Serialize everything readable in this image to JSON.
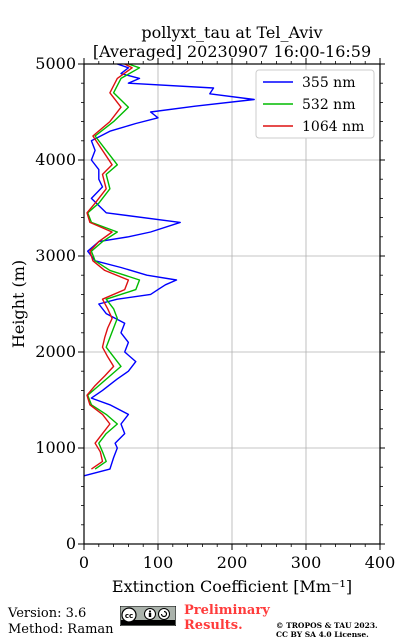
{
  "chart_data": {
    "type": "line",
    "title": "pollyxt_tau at Tel_Aviv",
    "subtitle": "[Averaged] 20230907 16:00-16:59",
    "xlabel": "Extinction Coefficient [Mm⁻¹]",
    "ylabel": "Height (m)",
    "xlim": [
      0,
      400
    ],
    "ylim": [
      0,
      5000
    ],
    "xticks": [
      "0",
      "100",
      "200",
      "300",
      "400"
    ],
    "yticks": [
      "0",
      "1000",
      "2000",
      "3000",
      "4000",
      "5000"
    ],
    "grid": true,
    "legend_position": "top-right",
    "orientation": "horizontal-profile",
    "series": [
      {
        "name": "355 nm",
        "color": "#0000ff",
        "points": [
          [
            0,
            710
          ],
          [
            35,
            780
          ],
          [
            40,
            900
          ],
          [
            45,
            1000
          ],
          [
            42,
            1050
          ],
          [
            55,
            1150
          ],
          [
            50,
            1250
          ],
          [
            60,
            1350
          ],
          [
            35,
            1450
          ],
          [
            10,
            1520
          ],
          [
            25,
            1600
          ],
          [
            45,
            1720
          ],
          [
            60,
            1800
          ],
          [
            70,
            1900
          ],
          [
            55,
            2000
          ],
          [
            60,
            2100
          ],
          [
            50,
            2200
          ],
          [
            55,
            2300
          ],
          [
            30,
            2400
          ],
          [
            20,
            2500
          ],
          [
            45,
            2550
          ],
          [
            90,
            2600
          ],
          [
            100,
            2650
          ],
          [
            110,
            2700
          ],
          [
            125,
            2750
          ],
          [
            85,
            2800
          ],
          [
            50,
            2880
          ],
          [
            15,
            2950
          ],
          [
            5,
            3050
          ],
          [
            20,
            3150
          ],
          [
            60,
            3200
          ],
          [
            90,
            3250
          ],
          [
            130,
            3350
          ],
          [
            30,
            3450
          ],
          [
            10,
            3600
          ],
          [
            25,
            3720
          ],
          [
            20,
            3800
          ],
          [
            20,
            3900
          ],
          [
            10,
            4000
          ],
          [
            15,
            4100
          ],
          [
            10,
            4200
          ],
          [
            35,
            4300
          ],
          [
            70,
            4380
          ],
          [
            100,
            4440
          ],
          [
            90,
            4500
          ],
          [
            150,
            4560
          ],
          [
            230,
            4630
          ],
          [
            170,
            4690
          ],
          [
            175,
            4750
          ],
          [
            60,
            4800
          ],
          [
            75,
            4850
          ],
          [
            50,
            4900
          ],
          [
            60,
            4960
          ],
          [
            45,
            5000
          ]
        ]
      },
      {
        "name": "532 nm",
        "color": "#00bb00",
        "points": [
          [
            15,
            780
          ],
          [
            30,
            860
          ],
          [
            25,
            960
          ],
          [
            20,
            1050
          ],
          [
            30,
            1150
          ],
          [
            45,
            1250
          ],
          [
            30,
            1350
          ],
          [
            10,
            1450
          ],
          [
            5,
            1550
          ],
          [
            20,
            1650
          ],
          [
            35,
            1750
          ],
          [
            50,
            1850
          ],
          [
            40,
            1950
          ],
          [
            30,
            2050
          ],
          [
            35,
            2150
          ],
          [
            40,
            2250
          ],
          [
            45,
            2350
          ],
          [
            40,
            2450
          ],
          [
            30,
            2550
          ],
          [
            70,
            2650
          ],
          [
            75,
            2750
          ],
          [
            35,
            2850
          ],
          [
            15,
            2950
          ],
          [
            10,
            3050
          ],
          [
            25,
            3150
          ],
          [
            45,
            3250
          ],
          [
            10,
            3350
          ],
          [
            5,
            3450
          ],
          [
            20,
            3550
          ],
          [
            35,
            3700
          ],
          [
            30,
            3850
          ],
          [
            45,
            3950
          ],
          [
            30,
            4100
          ],
          [
            15,
            4250
          ],
          [
            40,
            4400
          ],
          [
            60,
            4550
          ],
          [
            40,
            4700
          ],
          [
            50,
            4850
          ],
          [
            75,
            4960
          ],
          [
            60,
            5000
          ]
        ]
      },
      {
        "name": "1064 nm",
        "color": "#dd1111",
        "points": [
          [
            10,
            780
          ],
          [
            25,
            860
          ],
          [
            22,
            960
          ],
          [
            15,
            1050
          ],
          [
            25,
            1150
          ],
          [
            35,
            1250
          ],
          [
            25,
            1350
          ],
          [
            8,
            1450
          ],
          [
            4,
            1550
          ],
          [
            15,
            1650
          ],
          [
            28,
            1750
          ],
          [
            40,
            1850
          ],
          [
            32,
            1950
          ],
          [
            25,
            2050
          ],
          [
            28,
            2150
          ],
          [
            32,
            2250
          ],
          [
            38,
            2350
          ],
          [
            32,
            2450
          ],
          [
            25,
            2550
          ],
          [
            55,
            2650
          ],
          [
            60,
            2750
          ],
          [
            28,
            2850
          ],
          [
            12,
            2950
          ],
          [
            8,
            3050
          ],
          [
            20,
            3150
          ],
          [
            38,
            3250
          ],
          [
            8,
            3350
          ],
          [
            4,
            3450
          ],
          [
            15,
            3550
          ],
          [
            30,
            3700
          ],
          [
            25,
            3850
          ],
          [
            38,
            3950
          ],
          [
            25,
            4100
          ],
          [
            12,
            4250
          ],
          [
            35,
            4400
          ],
          [
            50,
            4550
          ],
          [
            35,
            4700
          ],
          [
            45,
            4850
          ],
          [
            65,
            4960
          ],
          [
            55,
            5000
          ]
        ]
      }
    ]
  },
  "footer": {
    "version": "Version: 3.6",
    "method": "Method: Raman",
    "preliminary_line1": "Preliminary",
    "preliminary_line2": "Results.",
    "copyright_line1": "© TROPOS & TAU 2023.",
    "copyright_line2": "CC BY SA 4.0 License.",
    "license_badge": "cc by sa"
  }
}
